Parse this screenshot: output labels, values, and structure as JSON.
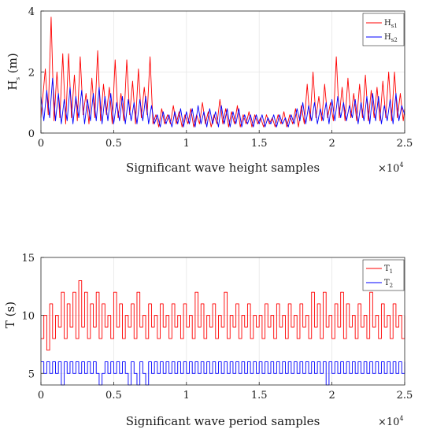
{
  "chart_data": [
    {
      "type": "line",
      "xlabel": "Significant wave height samples",
      "ylabel": "H",
      "ylabel_sub": "s",
      "ylabel_unit": " (m)",
      "x_multiplier": "×10",
      "x_multiplier_exp": "4",
      "xlim": [
        0,
        2.5
      ],
      "ylim": [
        0,
        4
      ],
      "xticks": [
        "0",
        "0.5",
        "1",
        "1.5",
        "2",
        "2.5"
      ],
      "xtick_values": [
        0,
        0.5,
        1,
        1.5,
        2,
        2.5
      ],
      "yticks": [
        "0",
        "2",
        "4"
      ],
      "ytick_values": [
        0,
        2,
        4
      ],
      "grid": true,
      "legend_placement": "top-right",
      "series": [
        {
          "name": "H",
          "name_sub": "s1",
          "color": "#ff0000",
          "x": [
            0.0,
            0.03,
            0.05,
            0.07,
            0.09,
            0.11,
            0.13,
            0.15,
            0.17,
            0.19,
            0.21,
            0.23,
            0.25,
            0.27,
            0.29,
            0.31,
            0.33,
            0.35,
            0.37,
            0.39,
            0.41,
            0.43,
            0.45,
            0.47,
            0.49,
            0.51,
            0.53,
            0.55,
            0.57,
            0.59,
            0.61,
            0.63,
            0.65,
            0.67,
            0.69,
            0.71,
            0.73,
            0.75,
            0.77,
            0.79,
            0.81,
            0.83,
            0.85,
            0.87,
            0.89,
            0.91,
            0.93,
            0.95,
            0.97,
            0.99,
            1.01,
            1.03,
            1.05,
            1.07,
            1.09,
            1.11,
            1.13,
            1.15,
            1.17,
            1.19,
            1.21,
            1.23,
            1.25,
            1.27,
            1.29,
            1.31,
            1.33,
            1.35,
            1.37,
            1.39,
            1.41,
            1.43,
            1.45,
            1.47,
            1.49,
            1.51,
            1.53,
            1.55,
            1.57,
            1.59,
            1.61,
            1.63,
            1.65,
            1.67,
            1.69,
            1.71,
            1.73,
            1.75,
            1.77,
            1.79,
            1.81,
            1.83,
            1.85,
            1.87,
            1.89,
            1.91,
            1.93,
            1.95,
            1.97,
            1.99,
            2.01,
            2.03,
            2.05,
            2.07,
            2.09,
            2.11,
            2.13,
            2.15,
            2.17,
            2.19,
            2.21,
            2.23,
            2.25,
            2.27,
            2.29,
            2.31,
            2.33,
            2.35,
            2.37,
            2.39,
            2.41,
            2.43,
            2.45,
            2.47,
            2.49,
            2.5
          ],
          "values": [
            0.5,
            2.1,
            0.6,
            3.8,
            0.4,
            2.0,
            0.5,
            2.6,
            0.3,
            2.6,
            0.5,
            1.9,
            0.4,
            2.5,
            0.6,
            1.3,
            0.3,
            1.8,
            0.5,
            2.7,
            0.4,
            1.6,
            0.6,
            1.5,
            0.3,
            2.4,
            0.5,
            1.3,
            0.4,
            2.4,
            0.6,
            1.7,
            0.3,
            2.1,
            0.5,
            1.5,
            0.6,
            2.5,
            0.3,
            0.6,
            0.2,
            0.8,
            0.3,
            0.6,
            0.3,
            0.9,
            0.3,
            0.7,
            0.2,
            0.6,
            0.3,
            0.8,
            0.2,
            0.6,
            0.3,
            1.0,
            0.3,
            0.7,
            0.2,
            0.6,
            0.3,
            1.1,
            0.3,
            0.8,
            0.2,
            0.7,
            0.3,
            0.9,
            0.2,
            0.6,
            0.3,
            0.7,
            0.2,
            0.6,
            0.3,
            0.5,
            0.2,
            0.6,
            0.3,
            0.5,
            0.2,
            0.6,
            0.3,
            0.7,
            0.2,
            0.6,
            0.3,
            0.8,
            0.2,
            0.9,
            0.3,
            1.6,
            0.4,
            2.0,
            0.5,
            1.2,
            0.4,
            1.6,
            0.5,
            1.0,
            0.4,
            2.5,
            0.5,
            1.5,
            0.4,
            1.8,
            0.5,
            1.3,
            0.4,
            1.6,
            0.5,
            1.9,
            0.4,
            1.4,
            0.5,
            1.5,
            0.4,
            1.7,
            0.5,
            2.0,
            0.4,
            2.0,
            0.5,
            1.3,
            0.4,
            0.8
          ]
        },
        {
          "name": "H",
          "name_sub": "s2",
          "color": "#0000ff",
          "x": [
            0.0,
            0.02,
            0.04,
            0.06,
            0.08,
            0.1,
            0.12,
            0.14,
            0.16,
            0.18,
            0.2,
            0.22,
            0.24,
            0.26,
            0.28,
            0.3,
            0.32,
            0.34,
            0.36,
            0.38,
            0.4,
            0.42,
            0.44,
            0.46,
            0.48,
            0.5,
            0.52,
            0.54,
            0.56,
            0.58,
            0.6,
            0.62,
            0.64,
            0.66,
            0.68,
            0.7,
            0.72,
            0.74,
            0.76,
            0.78,
            0.8,
            0.82,
            0.84,
            0.86,
            0.88,
            0.9,
            0.92,
            0.94,
            0.96,
            0.98,
            1.0,
            1.02,
            1.04,
            1.06,
            1.08,
            1.1,
            1.12,
            1.14,
            1.16,
            1.18,
            1.2,
            1.22,
            1.24,
            1.26,
            1.28,
            1.3,
            1.32,
            1.34,
            1.36,
            1.38,
            1.4,
            1.42,
            1.44,
            1.46,
            1.48,
            1.5,
            1.52,
            1.54,
            1.56,
            1.58,
            1.6,
            1.62,
            1.64,
            1.66,
            1.68,
            1.7,
            1.72,
            1.74,
            1.76,
            1.78,
            1.8,
            1.82,
            1.84,
            1.86,
            1.88,
            1.9,
            1.92,
            1.94,
            1.96,
            1.98,
            2.0,
            2.02,
            2.04,
            2.06,
            2.08,
            2.1,
            2.12,
            2.14,
            2.16,
            2.18,
            2.2,
            2.22,
            2.24,
            2.26,
            2.28,
            2.3,
            2.32,
            2.34,
            2.36,
            2.38,
            2.4,
            2.42,
            2.44,
            2.46,
            2.48,
            2.5
          ],
          "values": [
            1.2,
            0.4,
            1.4,
            0.5,
            1.8,
            0.4,
            1.3,
            0.3,
            1.1,
            0.4,
            1.5,
            0.3,
            1.2,
            0.5,
            1.4,
            0.3,
            1.1,
            0.4,
            1.3,
            0.4,
            1.5,
            0.3,
            1.2,
            0.4,
            1.3,
            0.3,
            1.0,
            0.4,
            1.2,
            0.3,
            1.1,
            0.4,
            1.0,
            0.3,
            1.1,
            0.4,
            1.2,
            0.3,
            0.9,
            0.3,
            0.6,
            0.2,
            0.7,
            0.3,
            0.6,
            0.2,
            0.7,
            0.3,
            0.8,
            0.2,
            0.7,
            0.3,
            0.8,
            0.2,
            0.9,
            0.3,
            0.7,
            0.2,
            0.8,
            0.3,
            0.7,
            0.2,
            0.9,
            0.3,
            0.8,
            0.2,
            0.7,
            0.3,
            0.8,
            0.2,
            0.6,
            0.3,
            0.6,
            0.2,
            0.6,
            0.3,
            0.6,
            0.2,
            0.5,
            0.3,
            0.6,
            0.2,
            0.6,
            0.3,
            0.5,
            0.2,
            0.6,
            0.3,
            0.8,
            0.4,
            1.0,
            0.3,
            0.9,
            0.4,
            1.0,
            0.3,
            0.8,
            0.4,
            1.0,
            0.3,
            1.1,
            0.4,
            1.2,
            0.5,
            1.0,
            0.4,
            0.9,
            0.5,
            1.1,
            0.3,
            1.0,
            0.4,
            1.2,
            0.3,
            1.3,
            0.4,
            1.2,
            0.3,
            0.9,
            0.4,
            1.1,
            0.3,
            1.3,
            0.4,
            0.9,
            0.6
          ]
        }
      ]
    },
    {
      "type": "line",
      "xlabel": "Significant wave period samples",
      "ylabel": "T (s)",
      "x_multiplier": "×10",
      "x_multiplier_exp": "4",
      "xlim": [
        0,
        2.5
      ],
      "ylim": [
        4,
        15
      ],
      "xticks": [
        "0",
        "0.5",
        "1",
        "1.5",
        "2",
        "2.5"
      ],
      "xtick_values": [
        0,
        0.5,
        1,
        1.5,
        2,
        2.5
      ],
      "yticks": [
        "5",
        "10",
        "15"
      ],
      "ytick_values": [
        5,
        10,
        15
      ],
      "grid": true,
      "legend_placement": "top-right",
      "series": [
        {
          "name": "T",
          "name_sub": "1",
          "color": "#ff0000",
          "x": [
            0.0,
            0.02,
            0.04,
            0.06,
            0.08,
            0.1,
            0.12,
            0.14,
            0.16,
            0.18,
            0.2,
            0.22,
            0.24,
            0.26,
            0.28,
            0.3,
            0.32,
            0.34,
            0.36,
            0.38,
            0.4,
            0.42,
            0.44,
            0.46,
            0.48,
            0.5,
            0.52,
            0.54,
            0.56,
            0.58,
            0.6,
            0.62,
            0.64,
            0.66,
            0.68,
            0.7,
            0.72,
            0.74,
            0.76,
            0.78,
            0.8,
            0.82,
            0.84,
            0.86,
            0.88,
            0.9,
            0.92,
            0.94,
            0.96,
            0.98,
            1.0,
            1.02,
            1.04,
            1.06,
            1.08,
            1.1,
            1.12,
            1.14,
            1.16,
            1.18,
            1.2,
            1.22,
            1.24,
            1.26,
            1.28,
            1.3,
            1.32,
            1.34,
            1.36,
            1.38,
            1.4,
            1.42,
            1.44,
            1.46,
            1.48,
            1.5,
            1.52,
            1.54,
            1.56,
            1.58,
            1.6,
            1.62,
            1.64,
            1.66,
            1.68,
            1.7,
            1.72,
            1.74,
            1.76,
            1.78,
            1.8,
            1.82,
            1.84,
            1.86,
            1.88,
            1.9,
            1.92,
            1.94,
            1.96,
            1.98,
            2.0,
            2.02,
            2.04,
            2.06,
            2.08,
            2.1,
            2.12,
            2.14,
            2.16,
            2.18,
            2.2,
            2.22,
            2.24,
            2.26,
            2.28,
            2.3,
            2.32,
            2.34,
            2.36,
            2.38,
            2.4,
            2.42,
            2.44,
            2.46,
            2.48,
            2.5
          ],
          "values": [
            8,
            10,
            7,
            11,
            8,
            10,
            9,
            12,
            8,
            11,
            9,
            12,
            8,
            13,
            9,
            12,
            8,
            11,
            9,
            12,
            8,
            11,
            9,
            10,
            8,
            12,
            9,
            11,
            8,
            10,
            9,
            11,
            8,
            12,
            9,
            10,
            8,
            11,
            9,
            10,
            8,
            11,
            9,
            10,
            8,
            11,
            9,
            10,
            8,
            11,
            9,
            10,
            8,
            12,
            9,
            11,
            8,
            10,
            9,
            11,
            8,
            10,
            9,
            12,
            8,
            10,
            9,
            11,
            8,
            10,
            9,
            11,
            8,
            10,
            9,
            10,
            8,
            11,
            9,
            10,
            8,
            11,
            9,
            10,
            8,
            11,
            9,
            10,
            8,
            11,
            9,
            10,
            8,
            12,
            9,
            11,
            8,
            12,
            9,
            10,
            8,
            11,
            9,
            12,
            8,
            11,
            9,
            10,
            8,
            11,
            9,
            10,
            8,
            12,
            9,
            10,
            8,
            11,
            9,
            10,
            8,
            11,
            9,
            10,
            8,
            10
          ]
        },
        {
          "name": "T",
          "name_sub": "2",
          "color": "#0000ff",
          "x": [
            0.0,
            0.02,
            0.04,
            0.06,
            0.08,
            0.1,
            0.12,
            0.14,
            0.16,
            0.18,
            0.2,
            0.22,
            0.24,
            0.26,
            0.28,
            0.3,
            0.32,
            0.34,
            0.36,
            0.38,
            0.4,
            0.42,
            0.44,
            0.46,
            0.48,
            0.5,
            0.52,
            0.54,
            0.56,
            0.58,
            0.6,
            0.62,
            0.64,
            0.66,
            0.68,
            0.7,
            0.72,
            0.74,
            0.76,
            0.78,
            0.8,
            0.82,
            0.84,
            0.86,
            0.88,
            0.9,
            0.92,
            0.94,
            0.96,
            0.98,
            1.0,
            1.02,
            1.04,
            1.06,
            1.08,
            1.1,
            1.12,
            1.14,
            1.16,
            1.18,
            1.2,
            1.22,
            1.24,
            1.26,
            1.28,
            1.3,
            1.32,
            1.34,
            1.36,
            1.38,
            1.4,
            1.42,
            1.44,
            1.46,
            1.48,
            1.5,
            1.52,
            1.54,
            1.56,
            1.58,
            1.6,
            1.62,
            1.64,
            1.66,
            1.68,
            1.7,
            1.72,
            1.74,
            1.76,
            1.78,
            1.8,
            1.82,
            1.84,
            1.86,
            1.88,
            1.9,
            1.92,
            1.94,
            1.96,
            1.98,
            2.0,
            2.02,
            2.04,
            2.06,
            2.08,
            2.1,
            2.12,
            2.14,
            2.16,
            2.18,
            2.2,
            2.22,
            2.24,
            2.26,
            2.28,
            2.3,
            2.32,
            2.34,
            2.36,
            2.38,
            2.4,
            2.42,
            2.44,
            2.46,
            2.48,
            2.5
          ],
          "values": [
            6,
            5,
            6,
            5,
            6,
            5,
            6,
            4,
            6,
            5,
            6,
            5,
            6,
            5,
            6,
            5,
            6,
            5,
            6,
            5,
            4,
            5,
            6,
            5,
            6,
            5,
            6,
            5,
            6,
            5,
            4,
            6,
            5,
            4,
            6,
            5,
            4,
            6,
            5,
            6,
            5,
            6,
            5,
            6,
            5,
            6,
            5,
            6,
            5,
            6,
            5,
            6,
            5,
            6,
            5,
            6,
            5,
            6,
            5,
            6,
            5,
            6,
            5,
            6,
            5,
            6,
            5,
            6,
            5,
            6,
            5,
            6,
            5,
            6,
            5,
            6,
            5,
            6,
            5,
            6,
            5,
            6,
            5,
            6,
            5,
            6,
            5,
            6,
            5,
            6,
            5,
            6,
            5,
            6,
            5,
            6,
            5,
            6,
            4,
            6,
            5,
            6,
            5,
            6,
            5,
            6,
            5,
            6,
            5,
            6,
            5,
            6,
            5,
            6,
            5,
            6,
            5,
            6,
            5,
            6,
            5,
            6,
            5,
            6,
            5,
            6
          ]
        }
      ]
    }
  ]
}
